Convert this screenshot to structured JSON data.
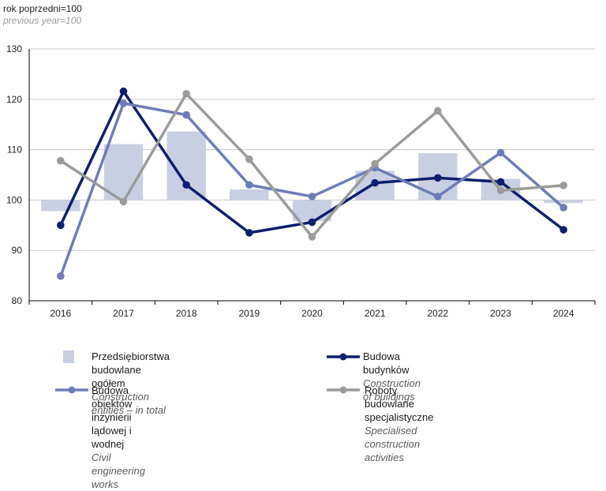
{
  "unit_label": {
    "pl": "rok poprzedni=100",
    "en": "previous year=100"
  },
  "chart_data": {
    "type": "bar+line",
    "categories": [
      "2016",
      "2017",
      "2018",
      "2019",
      "2020",
      "2021",
      "2022",
      "2023",
      "2024"
    ],
    "ylim": [
      80,
      130
    ],
    "yticks": [
      80,
      90,
      100,
      110,
      120,
      130
    ],
    "baseline": 100,
    "grid": true,
    "bars": {
      "name_pl": "Przedsiębiorstwa budowlane ogółem",
      "name_en": "Construction entities – in total",
      "color": "#c9cfe3",
      "values": [
        97.8,
        111.1,
        113.6,
        102.1,
        95.8,
        105.8,
        109.3,
        104.2,
        99.4
      ]
    },
    "series": [
      {
        "name_pl": "Budowa budynków",
        "name_en": "Construction of buildings",
        "color": "#0d1f6e",
        "values": [
          95.0,
          121.6,
          103.0,
          93.5,
          95.6,
          103.4,
          104.4,
          103.6,
          94.1
        ]
      },
      {
        "name_pl": "Budowa obiektów inżynierii lądowej i wodnej",
        "name_en": "Civil engineering works",
        "color": "#6d7db7",
        "values": [
          84.9,
          119.2,
          116.9,
          103.0,
          100.7,
          106.4,
          100.7,
          109.4,
          98.5
        ]
      },
      {
        "name_pl": "Roboty budowlane specjalistyczne",
        "name_en": "Specialised construction activities",
        "color": "#9b9b9b",
        "values": [
          107.8,
          99.7,
          121.1,
          108.1,
          92.7,
          107.2,
          117.7,
          101.9,
          102.9
        ]
      }
    ]
  }
}
